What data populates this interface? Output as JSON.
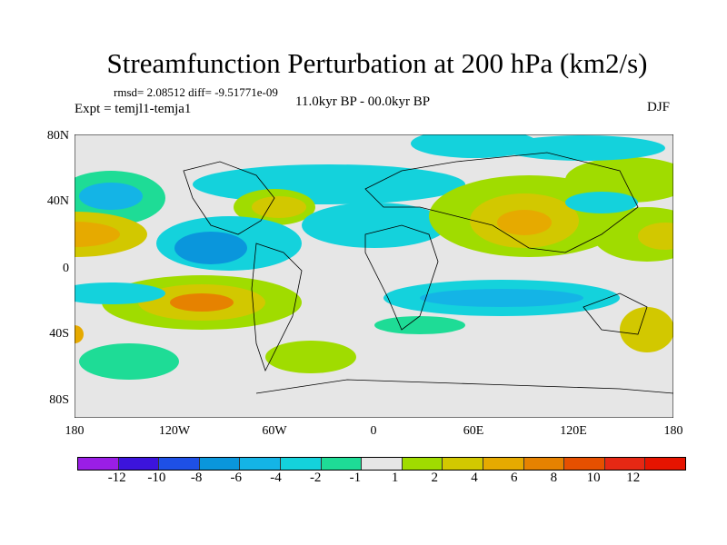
{
  "title": "Streamfunction Perturbation at 200 hPa (km2/s)",
  "stats": "rmsd= 2.08512 diff= -9.51771e-09",
  "experiment": "Expt = temjl1-temja1",
  "period": "11.0kyr BP - 00.0kyr BP",
  "season": "DJF",
  "lat_ticks": [
    "80N",
    "40N",
    "0",
    "40S",
    "80S"
  ],
  "lon_ticks": [
    "180",
    "120W",
    "60W",
    "0",
    "60E",
    "120E",
    "180"
  ],
  "colorbar": {
    "labels": [
      "-12",
      "-10",
      "-8",
      "-6",
      "-4",
      "-2",
      "-1",
      "1",
      "2",
      "4",
      "6",
      "8",
      "10",
      "12"
    ],
    "colors": [
      "#9a1ee6",
      "#3c14dc",
      "#1e50e6",
      "#0a96dc",
      "#14b4e6",
      "#14d2dc",
      "#1edc96",
      "#e6e6e6",
      "#a0dc00",
      "#d2c800",
      "#e6aa00",
      "#e68200",
      "#e65000",
      "#e62814",
      "#e61400"
    ]
  }
}
